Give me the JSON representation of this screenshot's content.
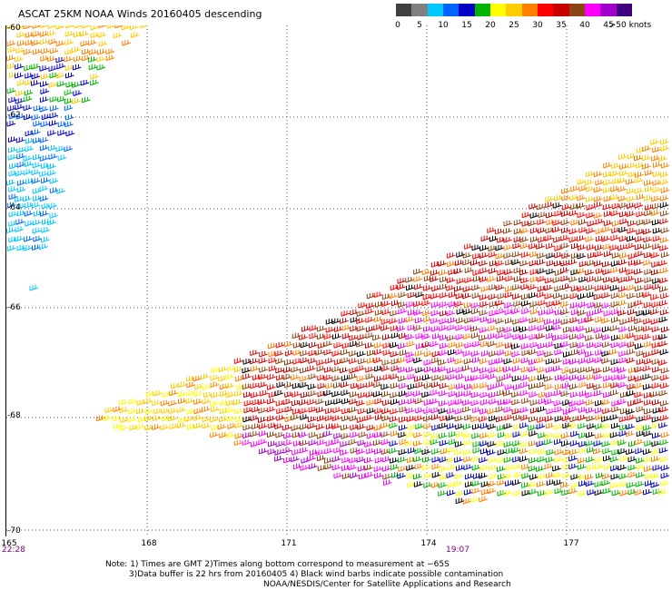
{
  "title": "ASCAT 25KM NOAA Winds 20160405 descending",
  "legend": {
    "colors": [
      "#404040",
      "#7f7f7f",
      "#00c8ff",
      "#0064ff",
      "#0000c8",
      "#00b400",
      "#ffff00",
      "#ffcc00",
      "#ff8000",
      "#ff0000",
      "#c80000",
      "#8b4513",
      "#ff00ff",
      "#a000c8",
      "#400080"
    ],
    "labels": [
      "0",
      "5",
      "10",
      "15",
      "20",
      "25",
      "30",
      "35",
      "40",
      "45",
      ">50 knots"
    ]
  },
  "map": {
    "lat_labels": [
      "-60",
      "-62",
      "-64",
      "-66",
      "-68",
      "-70"
    ],
    "lon_labels": [
      "165",
      "168",
      "171",
      "174",
      "177"
    ],
    "time_labels": [
      "22:28",
      "19:07"
    ]
  },
  "notes": [
    "Note: 1) Times are GMT 2)Times along bottom correspond to measurement at −65S",
    "3)Data buffer is 22 hrs from 20160405 4) Black wind barbs indicate possible contamination",
    "NOAA/NESDIS/Center for Satellite Applications and Research"
  ]
}
